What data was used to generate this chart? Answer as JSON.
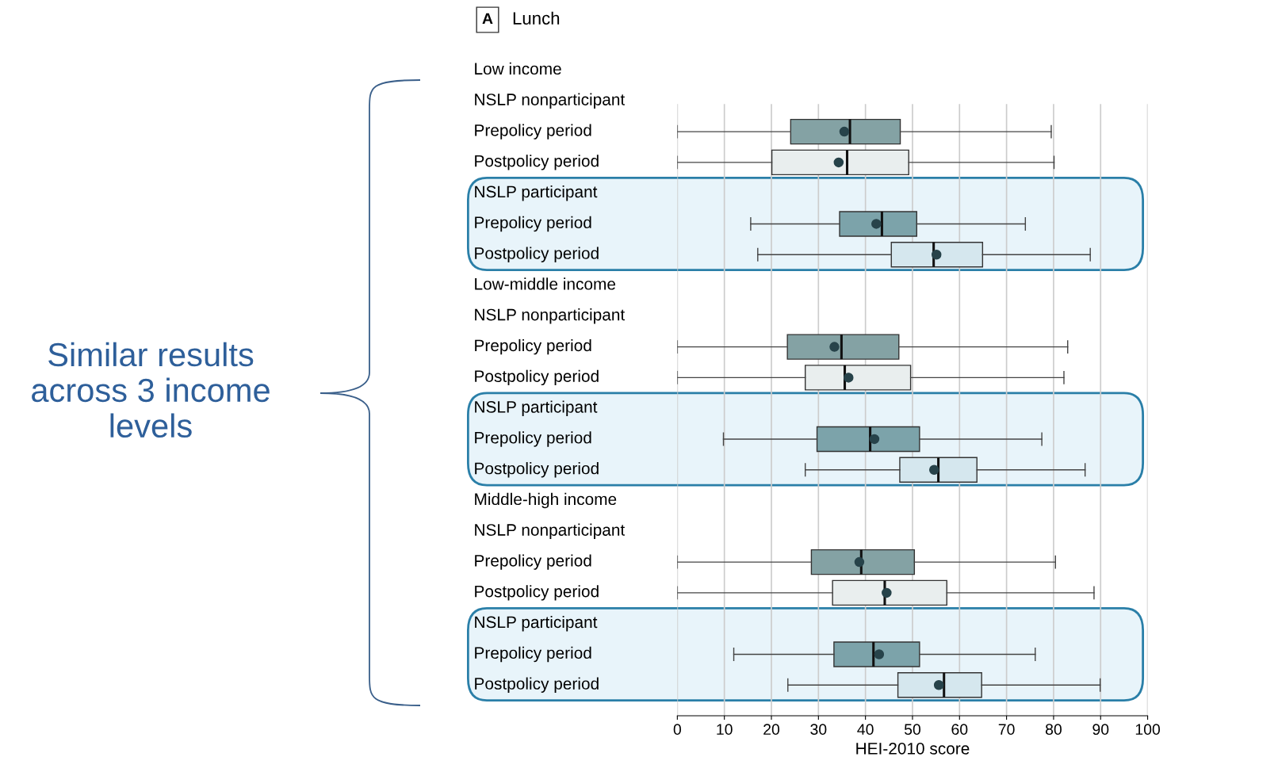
{
  "chart_data": {
    "type": "box",
    "title": "Lunch",
    "annotations": [
      "A",
      "Similar results across 3 income levels"
    ],
    "xlabel": "HEI-2010 score",
    "orientation": "horizontal",
    "categories": [
      "Low income",
      "NSLP nonparticipant",
      "Prepolicy period",
      "Postpolicy period",
      "NSLP participant",
      "Prepolicy period",
      "Postpolicy period",
      "Low-middle income",
      "NSLP nonparticipant",
      "Prepolicy period",
      "Postpolicy period",
      "NSLP participant",
      "Prepolicy period",
      "Postpolicy period",
      "Middle-high income",
      "NSLP nonparticipant",
      "Prepolicy period",
      "Postpolicy period",
      "NSLP participant",
      "Prepolicy period",
      "Postpolicy period"
    ],
    "boxes": [
      null,
      null,
      {
        "low": 0,
        "q1": 24.1,
        "median": 36.7,
        "q3": 47.4,
        "high": 79.5,
        "mean": 35.5
      },
      {
        "low": 0,
        "q1": 20.1,
        "median": 36.1,
        "q3": 49.2,
        "high": 80.1,
        "mean": 34.3
      },
      null,
      {
        "low": 15.6,
        "q1": 34.5,
        "median": 43.5,
        "q3": 50.9,
        "high": 74.0,
        "mean": 42.3
      },
      {
        "low": 17.1,
        "q1": 45.5,
        "median": 54.5,
        "q3": 64.9,
        "high": 87.8,
        "mean": 55.1
      },
      null,
      null,
      {
        "low": 0,
        "q1": 23.4,
        "median": 34.9,
        "q3": 47.1,
        "high": 83.0,
        "mean": 33.4
      },
      {
        "low": 0,
        "q1": 27.2,
        "median": 35.6,
        "q3": 49.6,
        "high": 82.2,
        "mean": 36.4
      },
      null,
      {
        "low": 9.8,
        "q1": 29.7,
        "median": 41.0,
        "q3": 51.5,
        "high": 77.5,
        "mean": 41.9
      },
      {
        "low": 27.2,
        "q1": 47.3,
        "median": 55.5,
        "q3": 63.7,
        "high": 86.7,
        "mean": 54.6
      },
      null,
      null,
      {
        "low": 0,
        "q1": 28.5,
        "median": 39.1,
        "q3": 50.4,
        "high": 80.4,
        "mean": 38.7
      },
      {
        "low": 0,
        "q1": 33.0,
        "median": 44.1,
        "q3": 57.3,
        "high": 88.6,
        "mean": 44.5
      },
      null,
      {
        "low": 12.0,
        "q1": 33.3,
        "median": 41.7,
        "q3": 51.5,
        "high": 76.1,
        "mean": 42.9
      },
      {
        "low": 23.5,
        "q1": 46.9,
        "median": 56.7,
        "q3": 64.7,
        "high": 89.9,
        "mean": 55.6
      }
    ],
    "colors": [
      null,
      null,
      "#84a2a4",
      "#e9eeee",
      null,
      "#7ca3aa",
      "#d5e7ee",
      null,
      null,
      "#84a2a4",
      "#e9eeee",
      null,
      "#7ca3aa",
      "#d5e7ee",
      null,
      null,
      "#84a2a4",
      "#e9eeee",
      null,
      "#7ca3aa",
      "#d5e7ee"
    ],
    "marker": "circle",
    "xlim": [
      0,
      100
    ],
    "xticks": [
      0,
      10,
      20,
      30,
      40,
      50,
      60,
      70,
      80,
      90,
      100
    ],
    "grid": "x"
  }
}
